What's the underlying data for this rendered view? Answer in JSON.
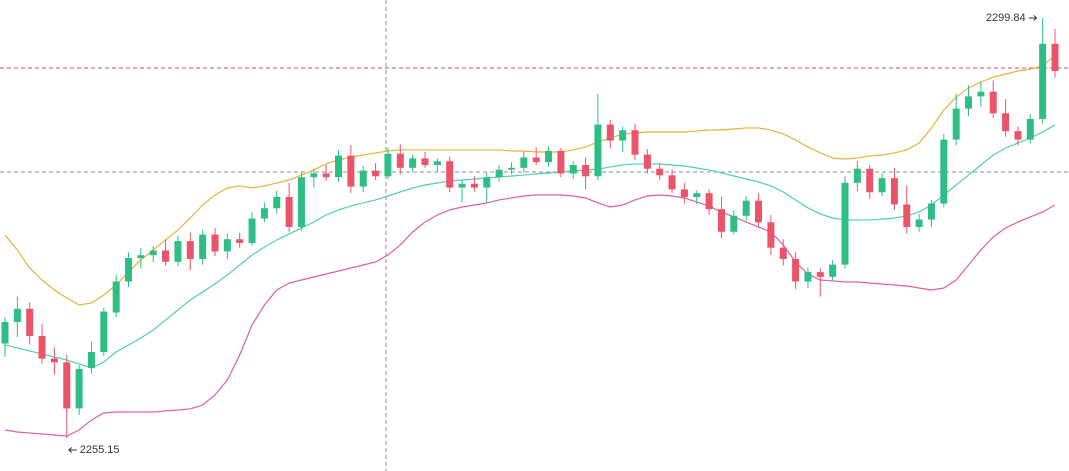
{
  "chart_data": {
    "type": "candlestick",
    "up_color": "#2ebd85",
    "down_color": "#ea5468",
    "candles": [
      [
        2265.2,
        2268.0,
        2263.8,
        2267.5
      ],
      [
        2267.5,
        2270.2,
        2265.9,
        2268.9
      ],
      [
        2268.9,
        2269.6,
        2265.1,
        2266.0
      ],
      [
        2266.0,
        2267.3,
        2263.1,
        2263.6
      ],
      [
        2263.6,
        2264.8,
        2261.9,
        2263.2
      ],
      [
        2263.2,
        2264.0,
        2255.15,
        2258.3
      ],
      [
        2258.3,
        2262.9,
        2257.6,
        2262.5
      ],
      [
        2262.6,
        2265.4,
        2262.0,
        2264.3
      ],
      [
        2264.3,
        2269.0,
        2263.9,
        2268.6
      ],
      [
        2268.5,
        2272.5,
        2268.0,
        2271.8
      ],
      [
        2271.8,
        2274.9,
        2271.2,
        2274.3
      ],
      [
        2274.3,
        2275.4,
        2273.2,
        2274.6
      ],
      [
        2274.6,
        2275.6,
        2273.9,
        2275.1
      ],
      [
        2275.1,
        2276.3,
        2273.5,
        2273.9
      ],
      [
        2273.9,
        2276.7,
        2273.4,
        2276.1
      ],
      [
        2276.1,
        2277.0,
        2273.0,
        2274.2
      ],
      [
        2274.2,
        2277.3,
        2273.6,
        2276.8
      ],
      [
        2276.8,
        2277.5,
        2274.5,
        2275.0
      ],
      [
        2275.0,
        2276.9,
        2274.2,
        2276.3
      ],
      [
        2276.3,
        2277.0,
        2275.4,
        2275.9
      ],
      [
        2275.9,
        2279.2,
        2275.6,
        2278.5
      ],
      [
        2278.5,
        2280.2,
        2278.1,
        2279.6
      ],
      [
        2279.6,
        2281.5,
        2279.0,
        2280.8
      ],
      [
        2280.8,
        2282.3,
        2277.1,
        2277.6
      ],
      [
        2277.6,
        2283.5,
        2277.2,
        2282.9
      ],
      [
        2282.9,
        2283.8,
        2281.8,
        2283.3
      ],
      [
        2283.3,
        2284.2,
        2282.5,
        2282.9
      ],
      [
        2282.9,
        2285.8,
        2282.4,
        2285.2
      ],
      [
        2285.2,
        2286.3,
        2281.2,
        2281.9
      ],
      [
        2281.9,
        2284.1,
        2281.3,
        2283.6
      ],
      [
        2283.6,
        2284.4,
        2282.6,
        2283.0
      ],
      [
        2283.0,
        2286.0,
        2282.7,
        2285.4
      ],
      [
        2285.4,
        2286.4,
        2283.2,
        2283.9
      ],
      [
        2283.9,
        2285.3,
        2283.5,
        2284.9
      ],
      [
        2284.9,
        2285.6,
        2283.9,
        2284.2
      ],
      [
        2284.2,
        2284.9,
        2283.4,
        2284.6
      ],
      [
        2284.6,
        2285.1,
        2281.3,
        2281.8
      ],
      [
        2281.8,
        2282.6,
        2280.2,
        2282.2
      ],
      [
        2282.2,
        2283.0,
        2281.4,
        2281.8
      ],
      [
        2281.8,
        2283.4,
        2280.2,
        2282.9
      ],
      [
        2282.9,
        2284.2,
        2282.4,
        2283.7
      ],
      [
        2283.7,
        2284.5,
        2283.2,
        2283.9
      ],
      [
        2283.9,
        2285.6,
        2283.4,
        2285.0
      ],
      [
        2285.0,
        2286.1,
        2284.2,
        2284.5
      ],
      [
        2284.5,
        2286.2,
        2284.0,
        2285.7
      ],
      [
        2285.7,
        2286.0,
        2282.9,
        2283.3
      ],
      [
        2283.3,
        2284.6,
        2282.7,
        2284.2
      ],
      [
        2284.2,
        2285.0,
        2281.6,
        2283.0
      ],
      [
        2283.0,
        2291.8,
        2282.6,
        2288.5
      ],
      [
        2288.5,
        2289.0,
        2286.0,
        2286.8
      ],
      [
        2286.8,
        2288.3,
        2285.6,
        2287.9
      ],
      [
        2287.9,
        2288.6,
        2284.7,
        2285.3
      ],
      [
        2285.3,
        2285.9,
        2283.3,
        2283.8
      ],
      [
        2283.8,
        2284.4,
        2282.6,
        2283.1
      ],
      [
        2283.1,
        2283.7,
        2281.2,
        2281.6
      ],
      [
        2281.6,
        2282.3,
        2280.1,
        2280.8
      ],
      [
        2280.8,
        2281.5,
        2280.0,
        2281.2
      ],
      [
        2281.2,
        2281.6,
        2278.9,
        2279.5
      ],
      [
        2279.5,
        2280.8,
        2276.4,
        2277.1
      ],
      [
        2277.1,
        2279.4,
        2276.8,
        2278.8
      ],
      [
        2278.8,
        2280.9,
        2278.3,
        2280.4
      ],
      [
        2280.4,
        2281.2,
        2277.6,
        2278.1
      ],
      [
        2278.1,
        2278.9,
        2274.6,
        2275.4
      ],
      [
        2275.4,
        2276.3,
        2273.5,
        2274.2
      ],
      [
        2274.2,
        2274.9,
        2271.0,
        2271.8
      ],
      [
        2271.8,
        2273.3,
        2271.1,
        2272.8
      ],
      [
        2272.8,
        2273.2,
        2270.2,
        2272.3
      ],
      [
        2272.3,
        2274.1,
        2271.9,
        2273.6
      ],
      [
        2273.6,
        2283.0,
        2273.2,
        2282.3
      ],
      [
        2282.3,
        2284.6,
        2281.4,
        2283.8
      ],
      [
        2283.8,
        2284.2,
        2280.6,
        2281.3
      ],
      [
        2281.3,
        2283.3,
        2280.9,
        2282.8
      ],
      [
        2282.8,
        2283.9,
        2279.4,
        2280.0
      ],
      [
        2280.0,
        2282.0,
        2276.9,
        2277.6
      ],
      [
        2277.6,
        2279.0,
        2277.1,
        2278.4
      ],
      [
        2278.4,
        2280.5,
        2277.6,
        2280.1
      ],
      [
        2280.1,
        2287.5,
        2279.7,
        2286.9
      ],
      [
        2286.9,
        2291.8,
        2286.3,
        2290.2
      ],
      [
        2290.2,
        2292.7,
        2289.4,
        2291.5
      ],
      [
        2291.5,
        2293.1,
        2290.4,
        2292.0
      ],
      [
        2292.0,
        2293.2,
        2289.2,
        2289.7
      ],
      [
        2289.7,
        2291.2,
        2287.2,
        2287.8
      ],
      [
        2287.8,
        2288.3,
        2286.3,
        2286.9
      ],
      [
        2286.9,
        2289.6,
        2286.5,
        2289.1
      ],
      [
        2289.1,
        2299.84,
        2288.6,
        2297.1
      ],
      [
        2297.1,
        2298.7,
        2293.5,
        2294.2
      ]
    ],
    "bands": [
      {
        "color": "#e8b23a",
        "values": [
          2276.75,
          2275.16,
          2273.24,
          2271.96,
          2270.9,
          2270.05,
          2269.3,
          2269.52,
          2270.37,
          2271.43,
          2272.81,
          2274.09,
          2275.16,
          2276.22,
          2277.28,
          2278.56,
          2279.94,
          2281.01,
          2281.75,
          2281.97,
          2281.75,
          2281.97,
          2282.28,
          2282.6,
          2283.13,
          2283.67,
          2284.31,
          2284.73,
          2285.05,
          2285.26,
          2285.48,
          2285.69,
          2285.8,
          2285.8,
          2285.8,
          2285.8,
          2285.8,
          2285.8,
          2285.8,
          2285.8,
          2285.8,
          2285.69,
          2285.69,
          2285.58,
          2285.58,
          2285.58,
          2285.8,
          2286.11,
          2286.65,
          2287.07,
          2287.5,
          2287.6,
          2287.71,
          2287.71,
          2287.71,
          2287.71,
          2287.82,
          2287.92,
          2287.92,
          2288.03,
          2288.14,
          2288.14,
          2287.92,
          2287.5,
          2286.86,
          2286.11,
          2285.48,
          2284.94,
          2284.84,
          2284.94,
          2285.16,
          2285.26,
          2285.48,
          2285.8,
          2286.54,
          2288.14,
          2290.05,
          2291.43,
          2292.39,
          2293.03,
          2293.56,
          2293.88,
          2294.2,
          2294.41,
          2294.73,
          2295.9
        ]
      },
      {
        "color": "#4fcfb3",
        "values": [
          2265.05,
          2264.73,
          2264.41,
          2264.09,
          2263.77,
          2263.45,
          2263.03,
          2262.6,
          2263.24,
          2264.3,
          2265.05,
          2265.79,
          2266.64,
          2267.71,
          2268.77,
          2269.84,
          2270.69,
          2271.54,
          2272.49,
          2273.56,
          2274.62,
          2275.47,
          2276.22,
          2276.86,
          2277.5,
          2278.13,
          2278.88,
          2279.41,
          2279.84,
          2280.16,
          2280.48,
          2280.9,
          2281.33,
          2281.75,
          2282.07,
          2282.28,
          2282.5,
          2282.6,
          2282.71,
          2282.82,
          2282.92,
          2283.03,
          2283.13,
          2283.24,
          2283.35,
          2283.45,
          2283.56,
          2283.67,
          2283.77,
          2283.99,
          2284.2,
          2284.31,
          2284.31,
          2284.31,
          2284.2,
          2284.09,
          2283.88,
          2283.67,
          2283.35,
          2283.03,
          2282.71,
          2282.39,
          2281.97,
          2281.33,
          2280.48,
          2279.63,
          2278.99,
          2278.56,
          2278.35,
          2278.35,
          2278.35,
          2278.45,
          2278.56,
          2278.77,
          2279.2,
          2279.94,
          2281.01,
          2282.07,
          2283.13,
          2284.2,
          2285.26,
          2286.01,
          2286.54,
          2287.07,
          2287.71,
          2288.46
        ]
      },
      {
        "color": "#de5ea3",
        "values": [
          2256.0,
          2255.79,
          2255.68,
          2255.58,
          2255.47,
          2255.36,
          2256.0,
          2257.07,
          2257.81,
          2257.92,
          2257.92,
          2257.92,
          2257.92,
          2258.03,
          2258.13,
          2258.24,
          2258.66,
          2259.73,
          2261.32,
          2263.98,
          2267.18,
          2269.3,
          2270.9,
          2271.64,
          2271.96,
          2272.28,
          2272.6,
          2272.92,
          2273.24,
          2273.56,
          2273.88,
          2274.62,
          2275.69,
          2277.07,
          2278.13,
          2278.88,
          2279.41,
          2279.73,
          2279.94,
          2280.16,
          2280.48,
          2280.69,
          2280.9,
          2281.01,
          2281.01,
          2281.01,
          2280.9,
          2280.69,
          2280.16,
          2279.73,
          2279.94,
          2280.48,
          2280.9,
          2281.01,
          2280.9,
          2280.69,
          2280.26,
          2279.84,
          2279.2,
          2278.67,
          2278.13,
          2277.6,
          2277.07,
          2275.69,
          2273.88,
          2272.6,
          2271.96,
          2271.86,
          2271.75,
          2271.75,
          2271.64,
          2271.54,
          2271.43,
          2271.32,
          2271.11,
          2270.9,
          2271.11,
          2271.96,
          2273.56,
          2275.16,
          2276.54,
          2277.5,
          2278.13,
          2278.67,
          2279.2,
          2279.94
        ]
      }
    ]
  }
}
